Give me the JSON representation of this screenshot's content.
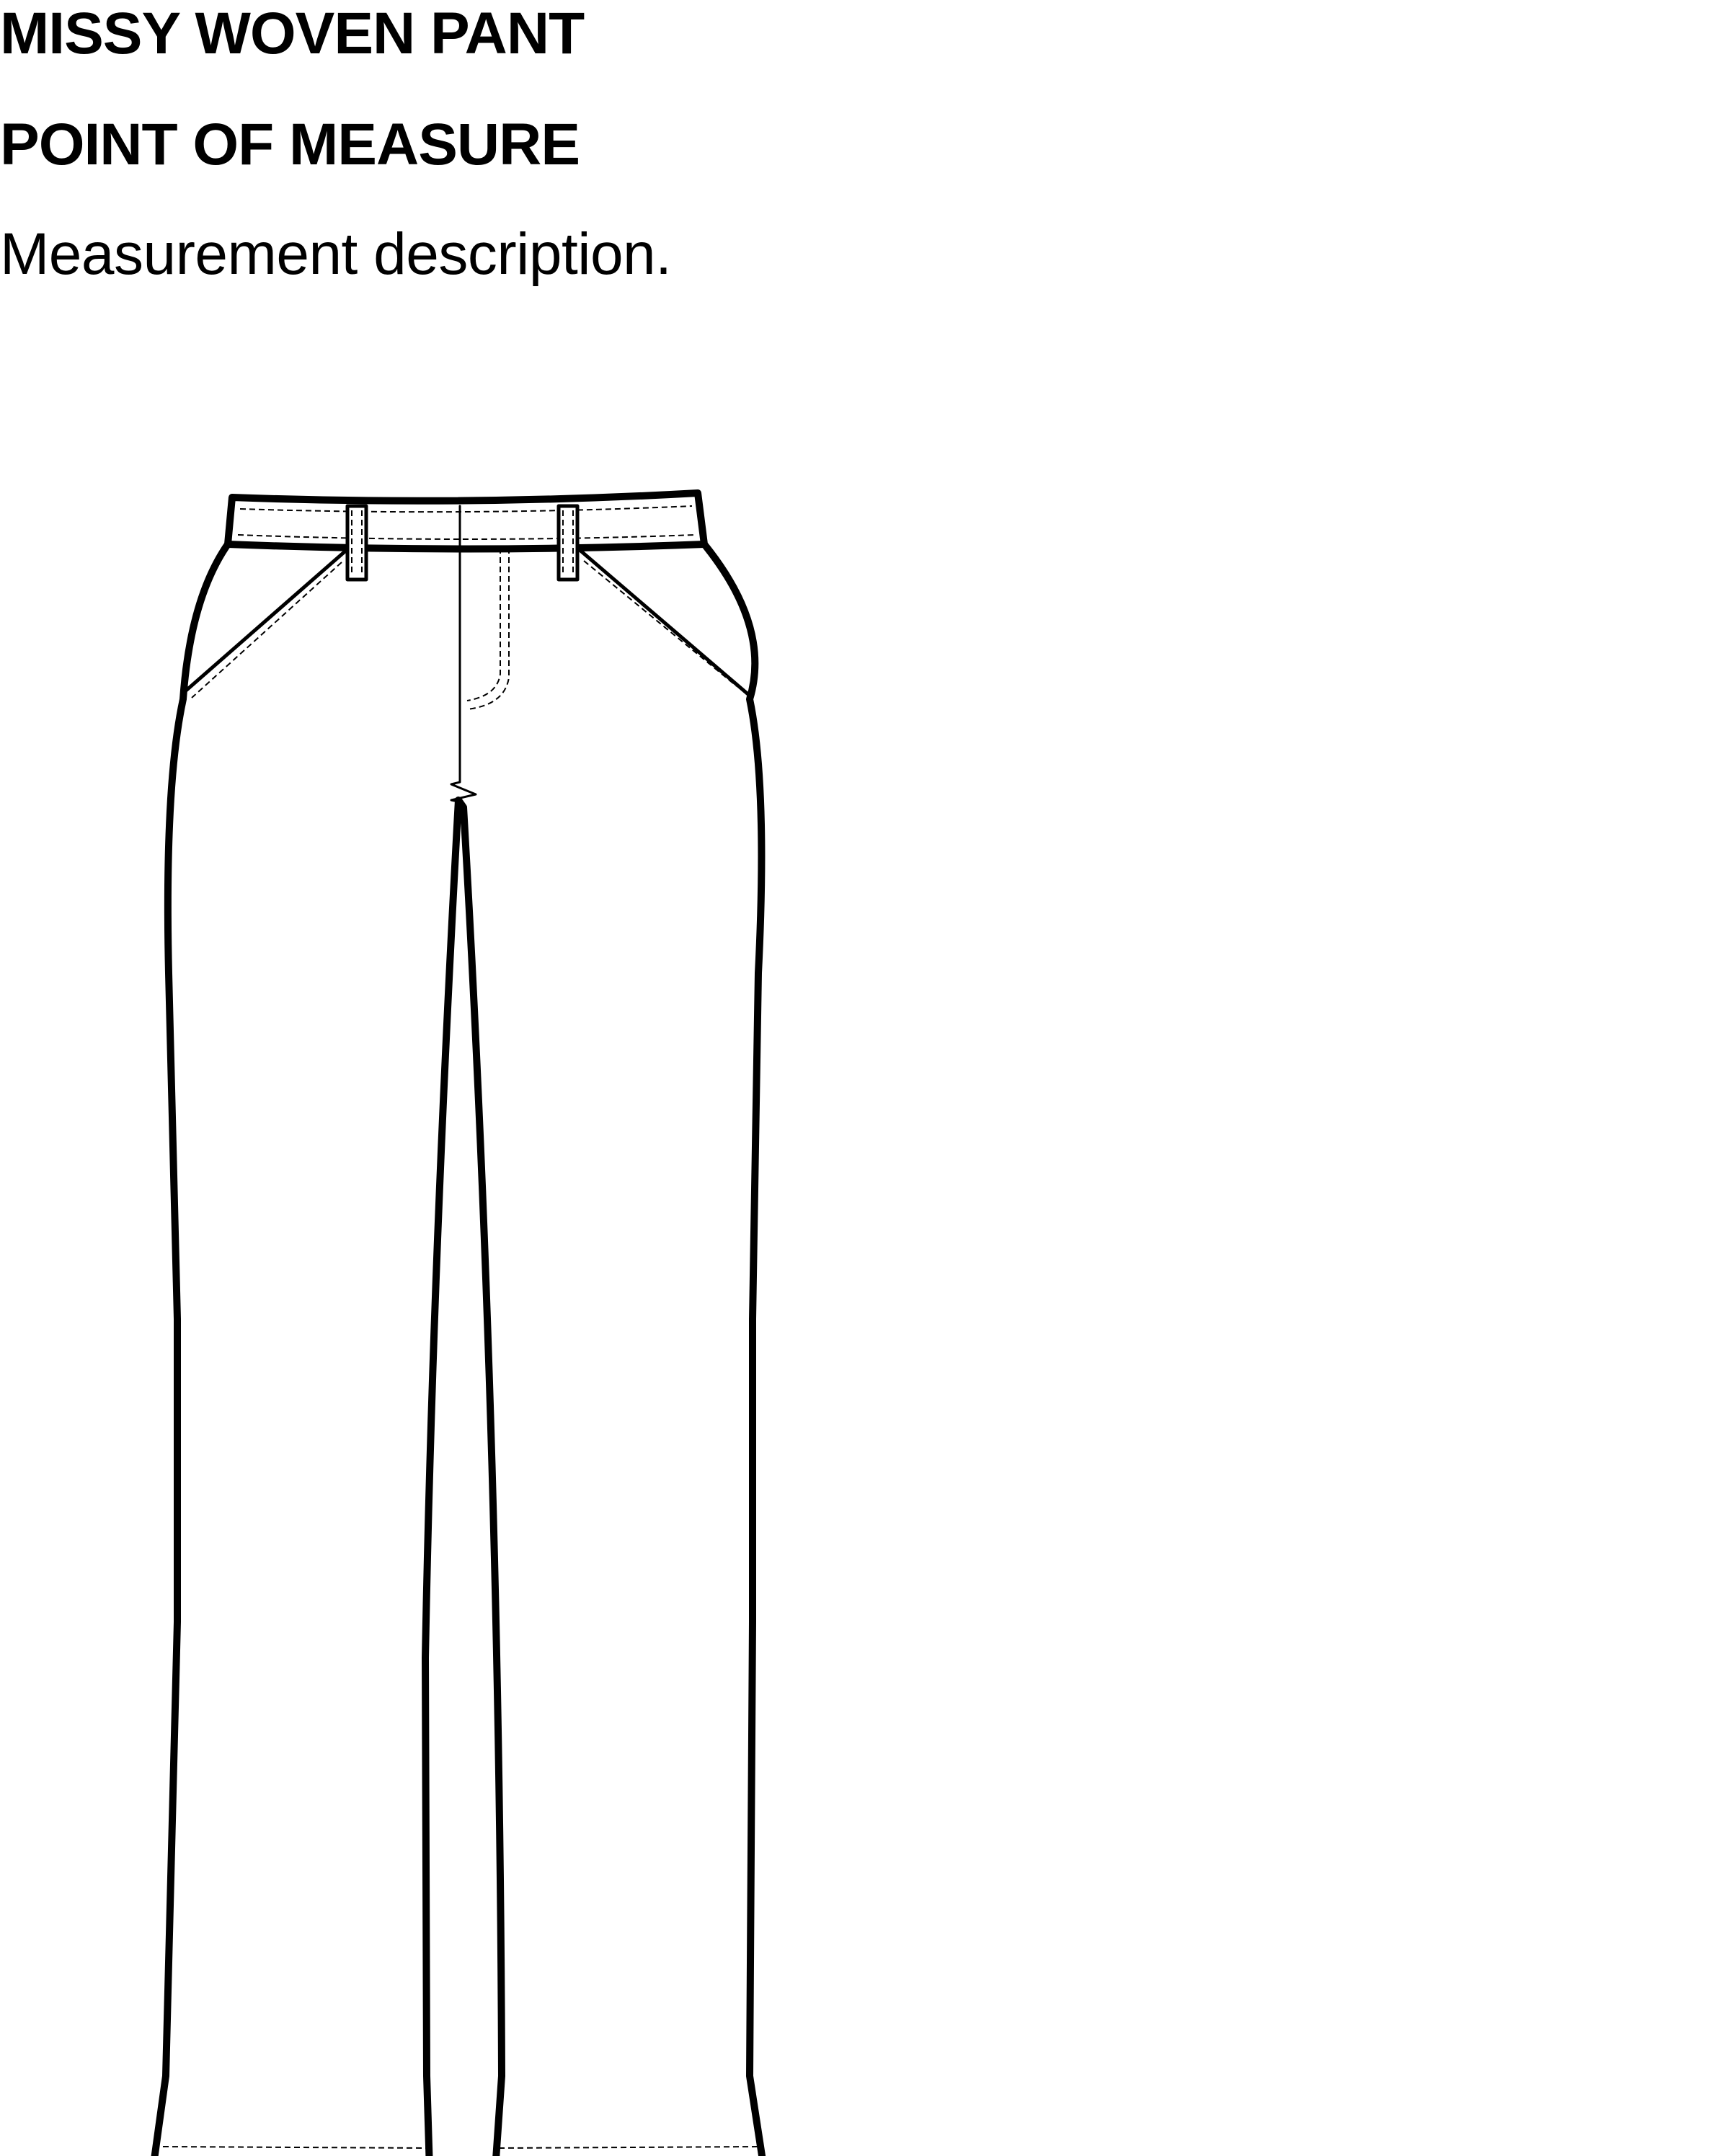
{
  "page": {
    "title": "MISSY WOVEN PANT",
    "subtitle": "POINT OF MEASURE",
    "description": "Measurement description."
  },
  "diagram": {
    "subject": "pant-front-flat-sketch",
    "line_color": "#000000",
    "background": "#ffffff"
  }
}
